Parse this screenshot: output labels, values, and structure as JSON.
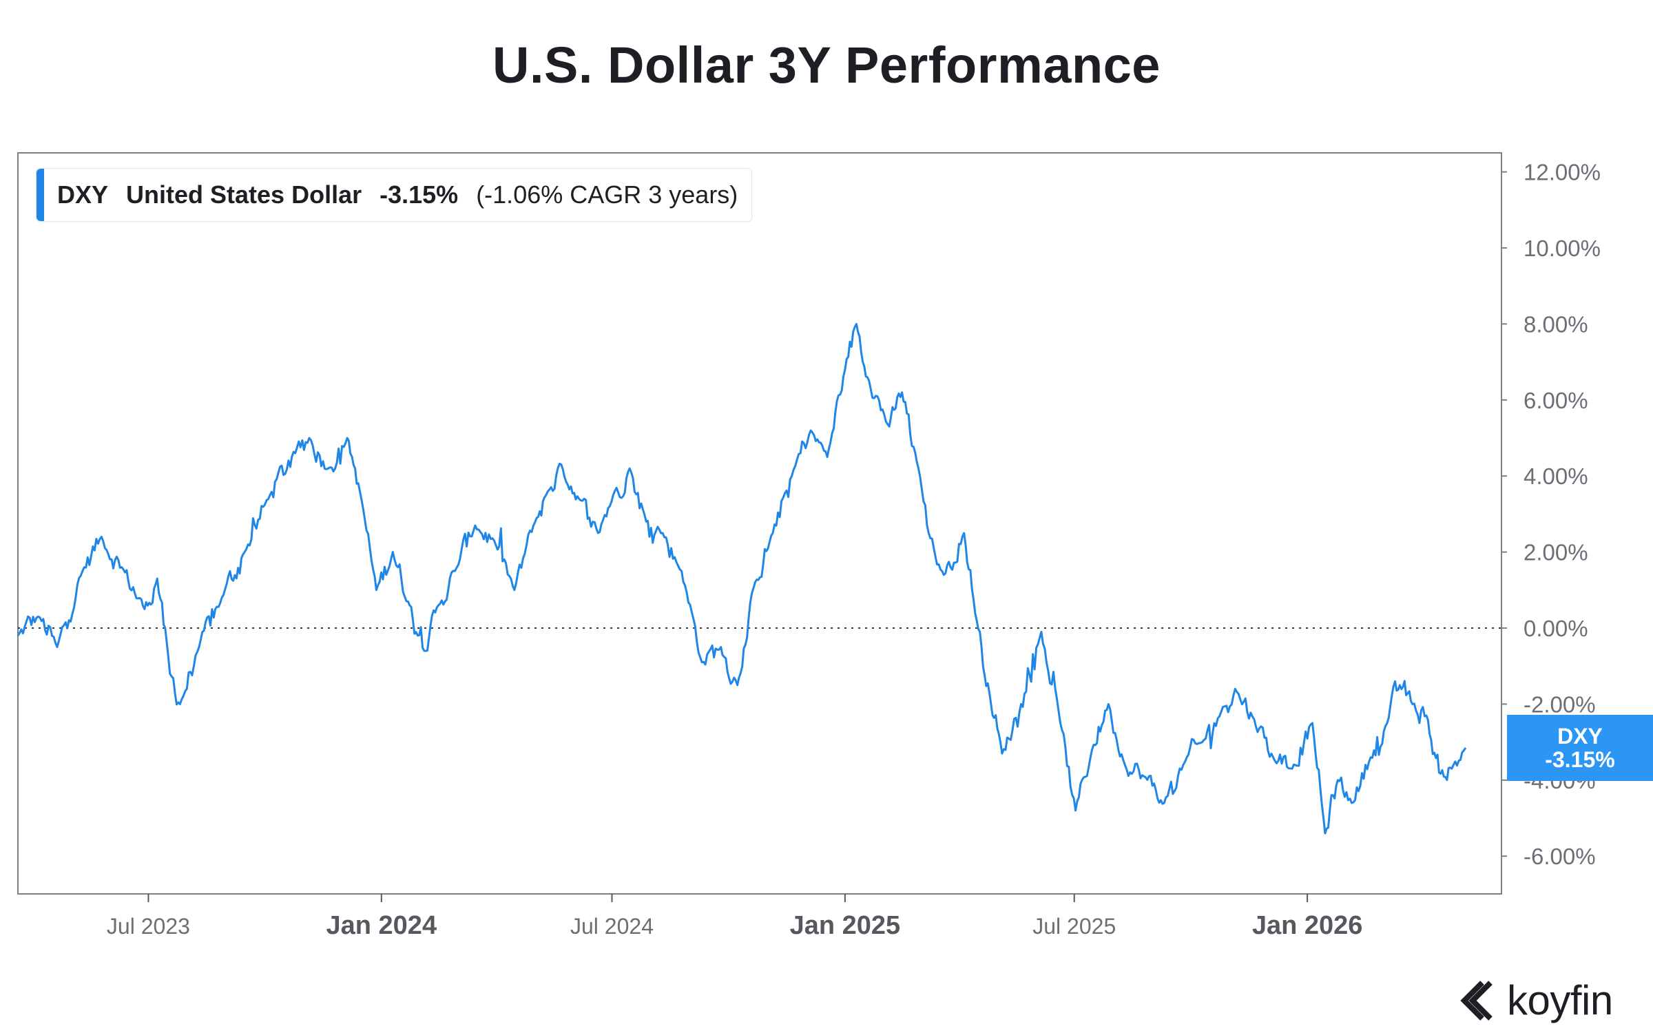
{
  "title": "U.S. Dollar 3Y Performance",
  "legend": {
    "ticker": "DXY",
    "name": "United States Dollar",
    "change": "-3.15%",
    "cagr": "(-1.06% CAGR 3 years)"
  },
  "last_value_tag": {
    "ticker": "DXY",
    "value": "-3.15%"
  },
  "brand": {
    "name": "koyfin"
  },
  "colors": {
    "line": "#1f86e8",
    "tag": "#2b96f3",
    "axis": "#6b6f75",
    "text": "#1d1f24"
  },
  "chart_data": {
    "type": "line",
    "title": "U.S. Dollar 3Y Performance",
    "series": [
      {
        "name": "DXY United States Dollar",
        "unit": "%"
      }
    ],
    "x_range": [
      "2023-03-20",
      "2026-05-06"
    ],
    "ylim": [
      -7.0,
      12.5
    ],
    "y_ticks": [
      12,
      10,
      8,
      6,
      4,
      2,
      0,
      -2,
      -4,
      -6
    ],
    "y_tick_labels": [
      "12.00%",
      "10.00%",
      "8.00%",
      "6.00%",
      "4.00%",
      "2.00%",
      "0.00%",
      "-2.00%",
      "-4.00%",
      "-6.00%"
    ],
    "x_ticks": [
      {
        "label": "Jul 2023",
        "date": "2023-07-01",
        "major": false
      },
      {
        "label": "Jan 2024",
        "date": "2024-01-01",
        "major": true
      },
      {
        "label": "Jul 2024",
        "date": "2024-07-01",
        "major": false
      },
      {
        "label": "Jan 2025",
        "date": "2025-01-01",
        "major": true
      },
      {
        "label": "Jul 2025",
        "date": "2025-07-01",
        "major": false
      },
      {
        "label": "Jan 2026",
        "date": "2026-01-01",
        "major": true
      }
    ],
    "reference_line": {
      "y": 0,
      "style": "dotted"
    },
    "key_points": [
      [
        "2023-03-20",
        -0.2
      ],
      [
        "2023-04-05",
        0.3
      ],
      [
        "2023-04-20",
        -0.5
      ],
      [
        "2023-05-10",
        1.5
      ],
      [
        "2023-05-25",
        2.4
      ],
      [
        "2023-06-10",
        1.6
      ],
      [
        "2023-06-28",
        0.5
      ],
      [
        "2023-07-08",
        1.3
      ],
      [
        "2023-07-18",
        -1.2
      ],
      [
        "2023-07-26",
        -2.0
      ],
      [
        "2023-08-10",
        -0.5
      ],
      [
        "2023-08-28",
        0.8
      ],
      [
        "2023-09-15",
        2.0
      ],
      [
        "2023-10-05",
        3.5
      ],
      [
        "2023-10-25",
        4.6
      ],
      [
        "2023-11-05",
        5.0
      ],
      [
        "2023-11-20",
        4.2
      ],
      [
        "2023-12-05",
        5.0
      ],
      [
        "2023-12-15",
        3.6
      ],
      [
        "2023-12-28",
        1.0
      ],
      [
        "2024-01-10",
        2.0
      ],
      [
        "2024-01-22",
        0.7
      ],
      [
        "2024-02-05",
        -0.6
      ],
      [
        "2024-02-15",
        0.6
      ],
      [
        "2024-02-28",
        1.5
      ],
      [
        "2024-03-15",
        2.7
      ],
      [
        "2024-03-30",
        2.3
      ],
      [
        "2024-04-15",
        1.0
      ],
      [
        "2024-04-30",
        2.7
      ],
      [
        "2024-05-10",
        3.5
      ],
      [
        "2024-05-22",
        4.3
      ],
      [
        "2024-06-05",
        3.4
      ],
      [
        "2024-06-20",
        2.5
      ],
      [
        "2024-07-02",
        3.5
      ],
      [
        "2024-07-15",
        4.2
      ],
      [
        "2024-07-28",
        2.8
      ],
      [
        "2024-08-10",
        2.5
      ],
      [
        "2024-08-25",
        1.5
      ],
      [
        "2024-09-10",
        -0.9
      ],
      [
        "2024-09-25",
        -0.5
      ],
      [
        "2024-10-08",
        -1.5
      ],
      [
        "2024-10-22",
        1.2
      ],
      [
        "2024-11-05",
        2.5
      ],
      [
        "2024-11-20",
        4.0
      ],
      [
        "2024-12-05",
        5.2
      ],
      [
        "2024-12-18",
        4.5
      ],
      [
        "2025-01-01",
        6.8
      ],
      [
        "2025-01-10",
        8.0
      ],
      [
        "2025-01-20",
        6.5
      ],
      [
        "2025-02-05",
        5.3
      ],
      [
        "2025-02-15",
        6.2
      ],
      [
        "2025-02-28",
        4.2
      ],
      [
        "2025-03-08",
        2.5
      ],
      [
        "2025-03-20",
        1.4
      ],
      [
        "2025-04-05",
        2.5
      ],
      [
        "2025-04-15",
        0.2
      ],
      [
        "2025-04-25",
        -1.7
      ],
      [
        "2025-05-05",
        -3.3
      ],
      [
        "2025-05-20",
        -2.0
      ],
      [
        "2025-06-05",
        -0.1
      ],
      [
        "2025-06-20",
        -2.5
      ],
      [
        "2025-07-02",
        -4.8
      ],
      [
        "2025-07-15",
        -3.2
      ],
      [
        "2025-07-28",
        -2.0
      ],
      [
        "2025-08-10",
        -3.6
      ],
      [
        "2025-08-25",
        -3.9
      ],
      [
        "2025-09-10",
        -4.6
      ],
      [
        "2025-09-25",
        -3.6
      ],
      [
        "2025-10-10",
        -3.0
      ],
      [
        "2025-10-25",
        -2.2
      ],
      [
        "2025-11-05",
        -1.6
      ],
      [
        "2025-11-20",
        -2.4
      ],
      [
        "2025-12-05",
        -3.4
      ],
      [
        "2025-12-20",
        -3.7
      ],
      [
        "2026-01-05",
        -2.5
      ],
      [
        "2026-01-15",
        -5.4
      ],
      [
        "2026-01-25",
        -4.0
      ],
      [
        "2026-02-05",
        -4.6
      ],
      [
        "2026-02-20",
        -3.4
      ],
      [
        "2026-03-05",
        -2.5
      ],
      [
        "2026-03-15",
        -1.5
      ],
      [
        "2026-03-25",
        -2.0
      ],
      [
        "2026-04-05",
        -2.3
      ],
      [
        "2026-04-15",
        -3.8
      ],
      [
        "2026-04-25",
        -3.7
      ],
      [
        "2026-05-06",
        -3.15
      ]
    ],
    "last_value": -3.15
  }
}
